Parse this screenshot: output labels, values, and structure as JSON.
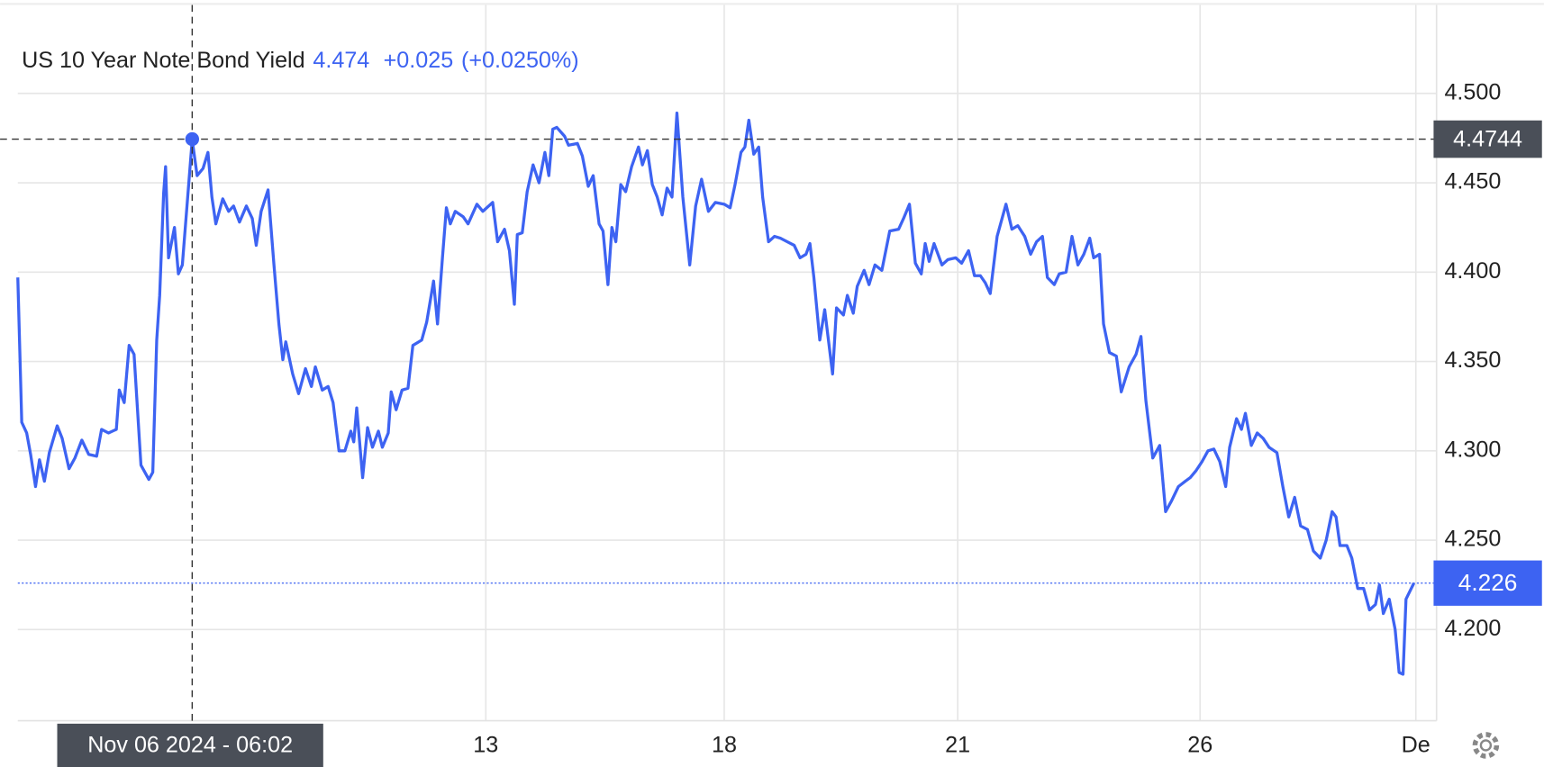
{
  "chart_data": {
    "type": "line",
    "title": "US 10 Year Note Bond Yield",
    "header_value": "4.474",
    "header_change": "+0.025",
    "header_change_pct": "(+0.0250%)",
    "xlim": [
      0,
      1440
    ],
    "xticks": [
      {
        "value": 475,
        "label": "13"
      },
      {
        "value": 717,
        "label": "18"
      },
      {
        "value": 954,
        "label": "21"
      },
      {
        "value": 1200,
        "label": "26"
      },
      {
        "value": 1419,
        "label": "De"
      }
    ],
    "ylim": [
      4.149,
      4.5495
    ],
    "yticks": [
      {
        "value": 4.2,
        "label": "4.200"
      },
      {
        "value": 4.25,
        "label": "4.250"
      },
      {
        "value": 4.3,
        "label": "4.300"
      },
      {
        "value": 4.35,
        "label": "4.350"
      },
      {
        "value": 4.4,
        "label": "4.400"
      },
      {
        "value": 4.45,
        "label": "4.450"
      },
      {
        "value": 4.5,
        "label": "4.500"
      }
    ],
    "grid": true,
    "crosshair": {
      "x": 177,
      "value": 4.4744,
      "label": "Nov 06 2024 - 06:02"
    },
    "series": [
      {
        "name": "US 10 Year Note Bond Yield",
        "color": "#3d63f2",
        "x": [
          0,
          4,
          9,
          13,
          18,
          22,
          27,
          32,
          40,
          45,
          52,
          58,
          65,
          72,
          80,
          85,
          92,
          100,
          103,
          108,
          113,
          118,
          125,
          133,
          137,
          141,
          144,
          148,
          150,
          153,
          159,
          163,
          167,
          177,
          182,
          188,
          193,
          197,
          201,
          208,
          214,
          219,
          225,
          232,
          238,
          242,
          247,
          254,
          260,
          265,
          269,
          272,
          279,
          285,
          292,
          298,
          302,
          309,
          315,
          320,
          326,
          332,
          338,
          341,
          344,
          350,
          355,
          360,
          366,
          370,
          376,
          379,
          384,
          390,
          396,
          401,
          410,
          415,
          422,
          426,
          431,
          435,
          439,
          444,
          452,
          457,
          466,
          472,
          482,
          487,
          494,
          499,
          504,
          507,
          512,
          517,
          523,
          529,
          535,
          539,
          543,
          547,
          555,
          559,
          568,
          573,
          579,
          584,
          590,
          594,
          599,
          603,
          607,
          612,
          617,
          623,
          630,
          634,
          639,
          644,
          649,
          654,
          659,
          664,
          669,
          675,
          682,
          688,
          694,
          701,
          708,
          717,
          723,
          728,
          734,
          738,
          742,
          747,
          752,
          756,
          762,
          768,
          774,
          781,
          788,
          794,
          800,
          804,
          808,
          814,
          819,
          827,
          831,
          838,
          842,
          848,
          852,
          859,
          864,
          870,
          877,
          885,
          894,
          899,
          905,
          911,
          917,
          921,
          925,
          930,
          938,
          944,
          952,
          958,
          965,
          971,
          977,
          982,
          987,
          994,
          1003,
          1009,
          1015,
          1022,
          1028,
          1034,
          1040,
          1045,
          1052,
          1057,
          1064,
          1070,
          1076,
          1082,
          1088,
          1092,
          1098,
          1102,
          1108,
          1115,
          1120,
          1128,
          1135,
          1140,
          1145,
          1152,
          1159,
          1165,
          1171,
          1178,
          1185,
          1190,
          1196,
          1202,
          1208,
          1214,
          1220,
          1226,
          1230,
          1237,
          1242,
          1246,
          1252,
          1258,
          1264,
          1270,
          1278,
          1284,
          1290,
          1296,
          1302,
          1309,
          1315,
          1322,
          1328,
          1334,
          1338,
          1342,
          1349,
          1354,
          1360,
          1366,
          1372,
          1378,
          1382,
          1386,
          1392,
          1398,
          1402,
          1406,
          1409,
          1417
        ],
        "values": [
          4.397,
          4.316,
          4.31,
          4.298,
          4.28,
          4.295,
          4.283,
          4.299,
          4.314,
          4.307,
          4.29,
          4.296,
          4.306,
          4.298,
          4.297,
          4.312,
          4.31,
          4.312,
          4.334,
          4.327,
          4.359,
          4.354,
          4.292,
          4.284,
          4.288,
          4.362,
          4.387,
          4.444,
          4.459,
          4.408,
          4.425,
          4.399,
          4.404,
          4.474,
          4.454,
          4.458,
          4.467,
          4.442,
          4.427,
          4.441,
          4.434,
          4.437,
          4.428,
          4.437,
          4.43,
          4.415,
          4.434,
          4.446,
          4.404,
          4.371,
          4.351,
          4.361,
          4.343,
          4.332,
          4.346,
          4.336,
          4.347,
          4.334,
          4.336,
          4.327,
          4.3,
          4.3,
          4.311,
          4.305,
          4.324,
          4.285,
          4.313,
          4.302,
          4.311,
          4.302,
          4.31,
          4.333,
          4.323,
          4.334,
          4.335,
          4.359,
          4.362,
          4.372,
          4.395,
          4.371,
          4.408,
          4.436,
          4.427,
          4.434,
          4.431,
          4.427,
          4.438,
          4.434,
          4.439,
          4.417,
          4.424,
          4.412,
          4.382,
          4.421,
          4.422,
          4.445,
          4.46,
          4.45,
          4.467,
          4.454,
          4.48,
          4.481,
          4.476,
          4.471,
          4.472,
          4.465,
          4.448,
          4.454,
          4.427,
          4.423,
          4.393,
          4.425,
          4.417,
          4.449,
          4.445,
          4.459,
          4.47,
          4.46,
          4.468,
          4.449,
          4.442,
          4.432,
          4.447,
          4.442,
          4.489,
          4.442,
          4.404,
          4.437,
          4.452,
          4.434,
          4.439,
          4.438,
          4.436,
          4.449,
          4.467,
          4.47,
          4.485,
          4.466,
          4.47,
          4.442,
          4.417,
          4.42,
          4.419,
          4.417,
          4.415,
          4.408,
          4.41,
          4.416,
          4.397,
          4.362,
          4.379,
          4.343,
          4.38,
          4.376,
          4.387,
          4.377,
          4.392,
          4.401,
          4.393,
          4.404,
          4.401,
          4.423,
          4.424,
          4.43,
          4.438,
          4.405,
          4.399,
          4.416,
          4.406,
          4.416,
          4.404,
          4.407,
          4.408,
          4.405,
          4.412,
          4.398,
          4.398,
          4.394,
          4.388,
          4.42,
          4.438,
          4.424,
          4.426,
          4.42,
          4.41,
          4.417,
          4.42,
          4.397,
          4.393,
          4.399,
          4.4,
          4.42,
          4.404,
          4.41,
          4.419,
          4.408,
          4.41,
          4.371,
          4.355,
          4.353,
          4.333,
          4.347,
          4.354,
          4.364,
          4.328,
          4.296,
          4.303,
          4.266,
          4.272,
          4.28,
          4.283,
          4.285,
          4.289,
          4.294,
          4.3,
          4.301,
          4.294,
          4.28,
          4.302,
          4.318,
          4.312,
          4.321,
          4.303,
          4.31,
          4.307,
          4.302,
          4.299,
          4.28,
          4.263,
          4.274,
          4.258,
          4.256,
          4.244,
          4.24,
          4.25,
          4.266,
          4.263,
          4.247,
          4.247,
          4.24,
          4.223,
          4.223,
          4.211,
          4.214,
          4.225,
          4.209,
          4.217,
          4.2,
          4.176,
          4.175,
          4.217,
          4.226
        ]
      }
    ]
  }
}
